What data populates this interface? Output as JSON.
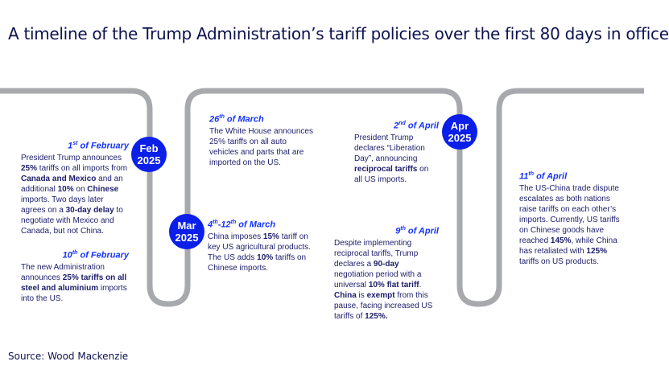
{
  "title": "A timeline of the Trump Administration’s tariff policies over the first 80 days in office",
  "source": "Source: Wood Mackenzie",
  "colors": {
    "path": "#a7a9ac",
    "circle": "#0b1fe8",
    "date": "#1433ff",
    "text": "#1c1c6b"
  },
  "months": [
    {
      "label": "Feb",
      "year": "2025"
    },
    {
      "label": "Mar",
      "year": "2025"
    },
    {
      "label": "Apr",
      "year": "2025"
    }
  ],
  "events": [
    {
      "day": "1",
      "suffix": "st",
      "rest": " of February",
      "body": [
        {
          "t": "President Trump announces "
        },
        {
          "t": "25%",
          "b": true
        },
        {
          "t": " tariffs on all imports from "
        },
        {
          "t": "Canada and Mexico",
          "b": true
        },
        {
          "t": " and an additional "
        },
        {
          "t": "10%",
          "b": true
        },
        {
          "t": " on "
        },
        {
          "t": "Chinese",
          "b": true
        },
        {
          "t": " imports. Two days later agrees on a "
        },
        {
          "t": "30-day delay",
          "b": true
        },
        {
          "t": " to negotiate with Mexico and Canada, but not China."
        }
      ]
    },
    {
      "day": "10",
      "suffix": "th",
      "rest": " of February",
      "body": [
        {
          "t": "The new Administration announces "
        },
        {
          "t": "25% tariffs on all steel and aluminium",
          "b": true
        },
        {
          "t": " imports into the US."
        }
      ]
    },
    {
      "day": "26",
      "suffix": "th",
      "rest": " of March",
      "body": [
        {
          "t": "The White House announces 25% tariffs on all auto vehicles and parts that are imported on the US."
        }
      ]
    },
    {
      "day": "4",
      "suffix": "th",
      "rest": "-12",
      "suffix2": "th",
      "rest2": " of March",
      "body": [
        {
          "t": "China imposes "
        },
        {
          "t": "15%",
          "b": true
        },
        {
          "t": " tariff on key US agricultural products. The US adds "
        },
        {
          "t": "10%",
          "b": true
        },
        {
          "t": " tariffs on Chinese imports."
        }
      ]
    },
    {
      "day": "2",
      "suffix": "nd",
      "rest": " of April",
      "body": [
        {
          "t": "President Trump declares “Liberation Day”, announcing "
        },
        {
          "t": "reciprocal tariffs",
          "b": true
        },
        {
          "t": " on all US imports."
        }
      ]
    },
    {
      "day": "9",
      "suffix": "th",
      "rest": " of April",
      "body": [
        {
          "t": "Despite implementing reciprocal tariffs, Trump declares a "
        },
        {
          "t": "90-day",
          "b": true
        },
        {
          "t": " negotiation period with a universal "
        },
        {
          "t": "10% flat tariff",
          "b": true
        },
        {
          "t": ". "
        },
        {
          "t": "China",
          "b": true
        },
        {
          "t": " is "
        },
        {
          "t": "exempt",
          "b": true
        },
        {
          "t": " from this pause, facing increased US tariffs of "
        },
        {
          "t": "125%.",
          "b": true
        }
      ]
    },
    {
      "day": "11",
      "suffix": "th",
      "rest": " of April",
      "body": [
        {
          "t": "The US-China trade dispute escalates as both nations raise tariffs on each other’s imports. Currently, US tariffs on Chinese goods have reached "
        },
        {
          "t": "145%",
          "b": true
        },
        {
          "t": ", while China has retaliated with "
        },
        {
          "t": "125%",
          "b": true
        },
        {
          "t": " tariffs on US products."
        }
      ]
    }
  ]
}
